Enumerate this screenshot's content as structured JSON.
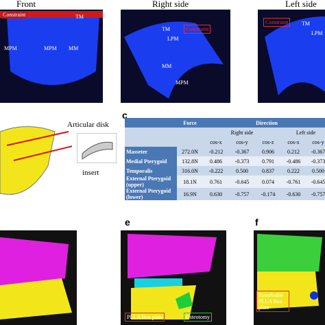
{
  "panel_a": {
    "front": {
      "title": "Front",
      "labels": [
        "Constraint",
        "TM",
        "MPM",
        "MPM",
        "MM"
      ]
    },
    "right": {
      "title": "Right side",
      "labels": [
        "TM",
        "Constraint",
        "LPM",
        "MM",
        "MPM"
      ]
    },
    "left": {
      "title": "Left side",
      "labels": [
        "Constraint",
        "TM",
        "LPM"
      ]
    }
  },
  "panel_b": {
    "labels": [
      "Articular disk",
      "insert"
    ]
  },
  "panel_c": {
    "letter": "c",
    "header": {
      "force": "Force",
      "direction": "Direction",
      "right": "Right side",
      "left": "Left side",
      "axes": [
        "cos-x",
        "cos-y",
        "cos-z",
        "cos-x",
        "cos-y"
      ]
    },
    "rows": [
      [
        "Masseter",
        "272.0N",
        "-0.212",
        "-0.367",
        "0.906",
        "0.212",
        "-0.367"
      ],
      [
        "Medial Pterygoid",
        "132.8N",
        "0.486",
        "-0.373",
        "0.791",
        "-0.486",
        "-0.373"
      ],
      [
        "Temporalis",
        "316.0N",
        "-0.222",
        "0.500",
        "0.837",
        "0.222",
        "0.500"
      ],
      [
        "External Pterygoid (upper)",
        "18.1N",
        "0.761",
        "-0.645",
        "0.074",
        "-0.761",
        "-0.645"
      ],
      [
        "External Pterygoid (lower)",
        "16.9N",
        "0.630",
        "-0.757",
        "-0.174",
        "-0.630",
        "-0.757"
      ]
    ]
  },
  "panel_e": {
    "letter": "e",
    "labels": [
      "PLLA Box plate",
      "Osteotomy"
    ]
  },
  "panel_f": {
    "letter": "f",
    "labels": [
      "Resorbable PLLA Box plate"
    ]
  }
}
